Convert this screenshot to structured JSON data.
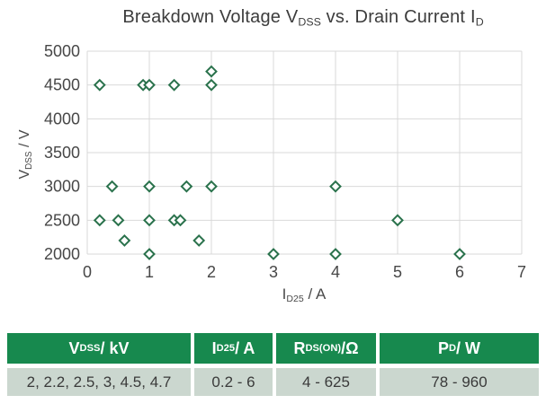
{
  "chart_data": {
    "type": "scatter",
    "title": "Breakdown Voltage V_{DSS} vs. Drain Current I_{D}",
    "xlabel": "I_{D25} / A",
    "ylabel": "V_{DSS} / V",
    "xlim": [
      0,
      7
    ],
    "ylim": [
      2000,
      5000
    ],
    "xtick_step": 1,
    "ytick_step": 500,
    "grid": true,
    "legend": "none",
    "marker": "open-diamond",
    "marker_color": "#2a724c",
    "grid_color": "#d9d9d9",
    "tick_color": "#474747",
    "points": [
      [
        0.2,
        4500
      ],
      [
        0.9,
        4500
      ],
      [
        1.0,
        4500
      ],
      [
        1.4,
        4500
      ],
      [
        2.0,
        4500
      ],
      [
        2.0,
        4700
      ],
      [
        0.4,
        3000
      ],
      [
        1.0,
        3000
      ],
      [
        1.6,
        3000
      ],
      [
        2.0,
        3000
      ],
      [
        4.0,
        3000
      ],
      [
        0.2,
        2500
      ],
      [
        0.5,
        2500
      ],
      [
        1.0,
        2500
      ],
      [
        1.4,
        2500
      ],
      [
        1.5,
        2500
      ],
      [
        5.0,
        2500
      ],
      [
        0.6,
        2200
      ],
      [
        1.8,
        2200
      ],
      [
        1.0,
        2000
      ],
      [
        3.0,
        2000
      ],
      [
        4.0,
        2000
      ],
      [
        6.0,
        2000
      ]
    ]
  },
  "table": {
    "header_bg": "#17894e",
    "row_bg": "#cbd7cf",
    "headers": [
      "V_{DSS} / kV",
      "I_{D25} / A",
      "R_{DS(ON)} /Ω",
      "P_{D} / W"
    ],
    "values": [
      "2, 2.2, 2.5, 3, 4.5, 4.7",
      "0.2 - 6",
      "4 - 625",
      "78 - 960"
    ]
  }
}
